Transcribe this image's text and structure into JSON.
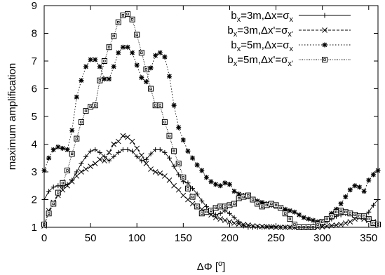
{
  "chart_data": {
    "type": "line",
    "xlabel": "ΔΦ [°]",
    "ylabel": "maximum amplification",
    "xlim": [
      0,
      360
    ],
    "ylim": [
      1,
      9
    ],
    "xticks": [
      0,
      50,
      100,
      150,
      200,
      250,
      300,
      350
    ],
    "yticks": [
      1,
      2,
      3,
      4,
      5,
      6,
      7,
      8,
      9
    ],
    "grid": false,
    "legend_position": "top-right",
    "series": [
      {
        "name": "b_x=3m,Δx=σ_x",
        "marker": "plus",
        "dash": "solid",
        "x": [
          0,
          5,
          10,
          15,
          20,
          25,
          30,
          35,
          40,
          45,
          50,
          55,
          60,
          65,
          70,
          75,
          80,
          85,
          90,
          95,
          100,
          105,
          110,
          115,
          120,
          125,
          130,
          135,
          140,
          145,
          150,
          155,
          160,
          165,
          170,
          175,
          180,
          185,
          190,
          195,
          200,
          205,
          210,
          215,
          220,
          225,
          230,
          235,
          240,
          245,
          250,
          255,
          260,
          265,
          270,
          275,
          280,
          285,
          290,
          295,
          300,
          305,
          310,
          315,
          320,
          325,
          330,
          335,
          340,
          345,
          350,
          355,
          360
        ],
        "y": [
          2.0,
          2.3,
          2.45,
          2.5,
          2.45,
          2.55,
          2.7,
          3.0,
          3.3,
          3.55,
          3.75,
          3.8,
          3.7,
          3.55,
          3.4,
          3.55,
          3.7,
          3.8,
          3.8,
          3.75,
          3.55,
          3.4,
          3.45,
          3.65,
          3.8,
          3.8,
          3.7,
          3.5,
          3.2,
          2.9,
          2.65,
          2.6,
          2.4,
          2.2,
          1.95,
          1.75,
          1.55,
          1.45,
          1.5,
          1.6,
          1.5,
          1.35,
          1.2,
          1.05,
          1.0,
          1.0,
          1.0,
          1.0,
          1.02,
          1.03,
          1.02,
          1.0,
          1.0,
          1.0,
          1.0,
          1.0,
          1.0,
          1.02,
          1.05,
          1.1,
          1.15,
          1.2,
          1.3,
          1.4,
          1.45,
          1.5,
          1.5,
          1.45,
          1.4,
          1.4,
          1.55,
          1.8,
          2.0
        ]
      },
      {
        "name": "b_x=3m,Δx'=σ_x'",
        "marker": "cross",
        "dash": "dashed",
        "x": [
          0,
          5,
          10,
          15,
          20,
          25,
          30,
          35,
          40,
          45,
          50,
          55,
          60,
          65,
          70,
          75,
          80,
          85,
          90,
          95,
          100,
          105,
          110,
          115,
          120,
          125,
          130,
          135,
          140,
          145,
          150,
          155,
          160,
          165,
          170,
          175,
          180,
          185,
          190,
          195,
          200,
          205,
          210,
          215,
          220,
          225,
          230,
          235,
          240,
          245,
          250,
          255,
          260,
          265,
          270,
          275,
          280,
          285,
          290,
          295,
          300,
          305,
          310,
          315,
          320,
          325,
          330,
          335,
          340,
          345,
          350,
          355,
          360
        ],
        "y": [
          1.05,
          1.6,
          1.9,
          2.15,
          2.35,
          2.5,
          2.65,
          2.85,
          3.0,
          3.1,
          3.2,
          3.3,
          3.45,
          3.4,
          3.7,
          4.0,
          4.1,
          4.3,
          4.25,
          4.1,
          3.85,
          3.6,
          3.3,
          3.1,
          3.0,
          2.95,
          2.85,
          2.7,
          2.5,
          2.35,
          2.15,
          2.0,
          1.85,
          1.75,
          1.65,
          1.55,
          1.45,
          1.35,
          1.3,
          1.25,
          1.2,
          1.15,
          1.12,
          1.1,
          1.08,
          1.05,
          1.04,
          1.03,
          1.02,
          1.01,
          1.0,
          1.0,
          1.0,
          1.0,
          1.0,
          1.0,
          1.0,
          1.0,
          1.0,
          1.0,
          1.02,
          1.04,
          1.06,
          1.08,
          1.1,
          1.15,
          1.2,
          1.3,
          1.35,
          1.3,
          1.25,
          1.2,
          1.1
        ]
      },
      {
        "name": "b_x=5m,Δx=σ_x",
        "marker": "star",
        "dash": "dotted",
        "x": [
          0,
          5,
          10,
          15,
          20,
          25,
          30,
          35,
          40,
          45,
          50,
          55,
          60,
          65,
          70,
          75,
          80,
          85,
          90,
          95,
          100,
          105,
          110,
          115,
          120,
          125,
          130,
          135,
          140,
          145,
          150,
          155,
          160,
          165,
          170,
          175,
          180,
          185,
          190,
          195,
          200,
          205,
          210,
          215,
          220,
          225,
          230,
          235,
          240,
          245,
          250,
          255,
          260,
          265,
          270,
          275,
          280,
          285,
          290,
          295,
          300,
          305,
          310,
          315,
          320,
          325,
          330,
          335,
          340,
          345,
          350,
          355,
          360
        ],
        "y": [
          3.05,
          3.5,
          3.8,
          3.9,
          3.85,
          3.8,
          4.5,
          5.7,
          6.3,
          6.8,
          7.05,
          7.05,
          6.8,
          6.35,
          6.35,
          6.8,
          7.3,
          7.5,
          7.5,
          7.3,
          6.85,
          6.4,
          6.25,
          6.75,
          7.2,
          7.3,
          7.15,
          6.45,
          5.4,
          4.6,
          4.15,
          3.75,
          3.5,
          3.25,
          3.05,
          2.8,
          2.65,
          2.55,
          2.5,
          2.6,
          2.55,
          2.3,
          2.2,
          2.15,
          2.1,
          2.0,
          1.95,
          1.9,
          1.85,
          1.8,
          1.75,
          1.7,
          1.65,
          1.6,
          1.55,
          1.45,
          1.35,
          1.3,
          1.25,
          1.2,
          1.2,
          1.3,
          1.5,
          1.65,
          1.85,
          2.1,
          2.35,
          2.5,
          2.45,
          2.3,
          2.7,
          2.9,
          3.05
        ]
      },
      {
        "name": "b_x=5m,Δx'=σ_x'",
        "marker": "square",
        "dash": "densely-dotted",
        "x": [
          0,
          5,
          10,
          15,
          20,
          25,
          30,
          35,
          40,
          45,
          50,
          55,
          60,
          65,
          70,
          75,
          80,
          85,
          90,
          95,
          100,
          105,
          110,
          115,
          120,
          125,
          130,
          135,
          140,
          145,
          150,
          155,
          160,
          165,
          170,
          175,
          180,
          185,
          190,
          195,
          200,
          205,
          210,
          215,
          220,
          225,
          230,
          235,
          240,
          245,
          250,
          255,
          260,
          265,
          270,
          275,
          280,
          285,
          290,
          295,
          300,
          305,
          310,
          315,
          320,
          325,
          330,
          335,
          340,
          345,
          350,
          355,
          360
        ],
        "y": [
          1.1,
          1.5,
          1.85,
          2.25,
          2.6,
          3.05,
          3.65,
          4.2,
          4.8,
          5.2,
          5.35,
          5.4,
          6.3,
          7.0,
          7.5,
          7.9,
          8.4,
          8.65,
          8.7,
          8.5,
          7.95,
          7.3,
          6.7,
          6.0,
          5.4,
          5.4,
          4.8,
          4.3,
          3.75,
          3.3,
          2.8,
          2.4,
          2.1,
          1.75,
          1.5,
          1.55,
          1.6,
          1.7,
          1.75,
          1.75,
          1.8,
          1.85,
          2.05,
          2.1,
          2.15,
          2.0,
          1.85,
          1.75,
          1.8,
          1.85,
          1.8,
          1.7,
          1.5,
          1.3,
          1.1,
          1.0,
          1.0,
          1.0,
          1.0,
          1.1,
          1.2,
          1.3,
          1.4,
          1.55,
          1.6,
          1.55,
          1.5,
          1.45,
          1.4,
          1.4,
          1.3,
          1.15,
          1.1
        ]
      }
    ]
  },
  "colors": {
    "axis": "#000000",
    "series": "#000000",
    "background": "#ffffff"
  },
  "legend": [
    {
      "b": "b",
      "bsub": "x",
      "mid": "=3m,Δx=σ",
      "tail": "x",
      "prime": ""
    },
    {
      "b": "b",
      "bsub": "x",
      "mid": "=3m,Δx'=σ",
      "tail": "x'",
      "prime": ""
    },
    {
      "b": "b",
      "bsub": "x",
      "mid": "=5m,Δx=σ",
      "tail": "x",
      "prime": ""
    },
    {
      "b": "b",
      "bsub": "x",
      "mid": "=5m,Δx'=σ",
      "tail": "x'",
      "prime": ""
    }
  ],
  "xlabel_parts": {
    "main": "ΔΦ [",
    "sup": "o",
    "end": "]"
  }
}
